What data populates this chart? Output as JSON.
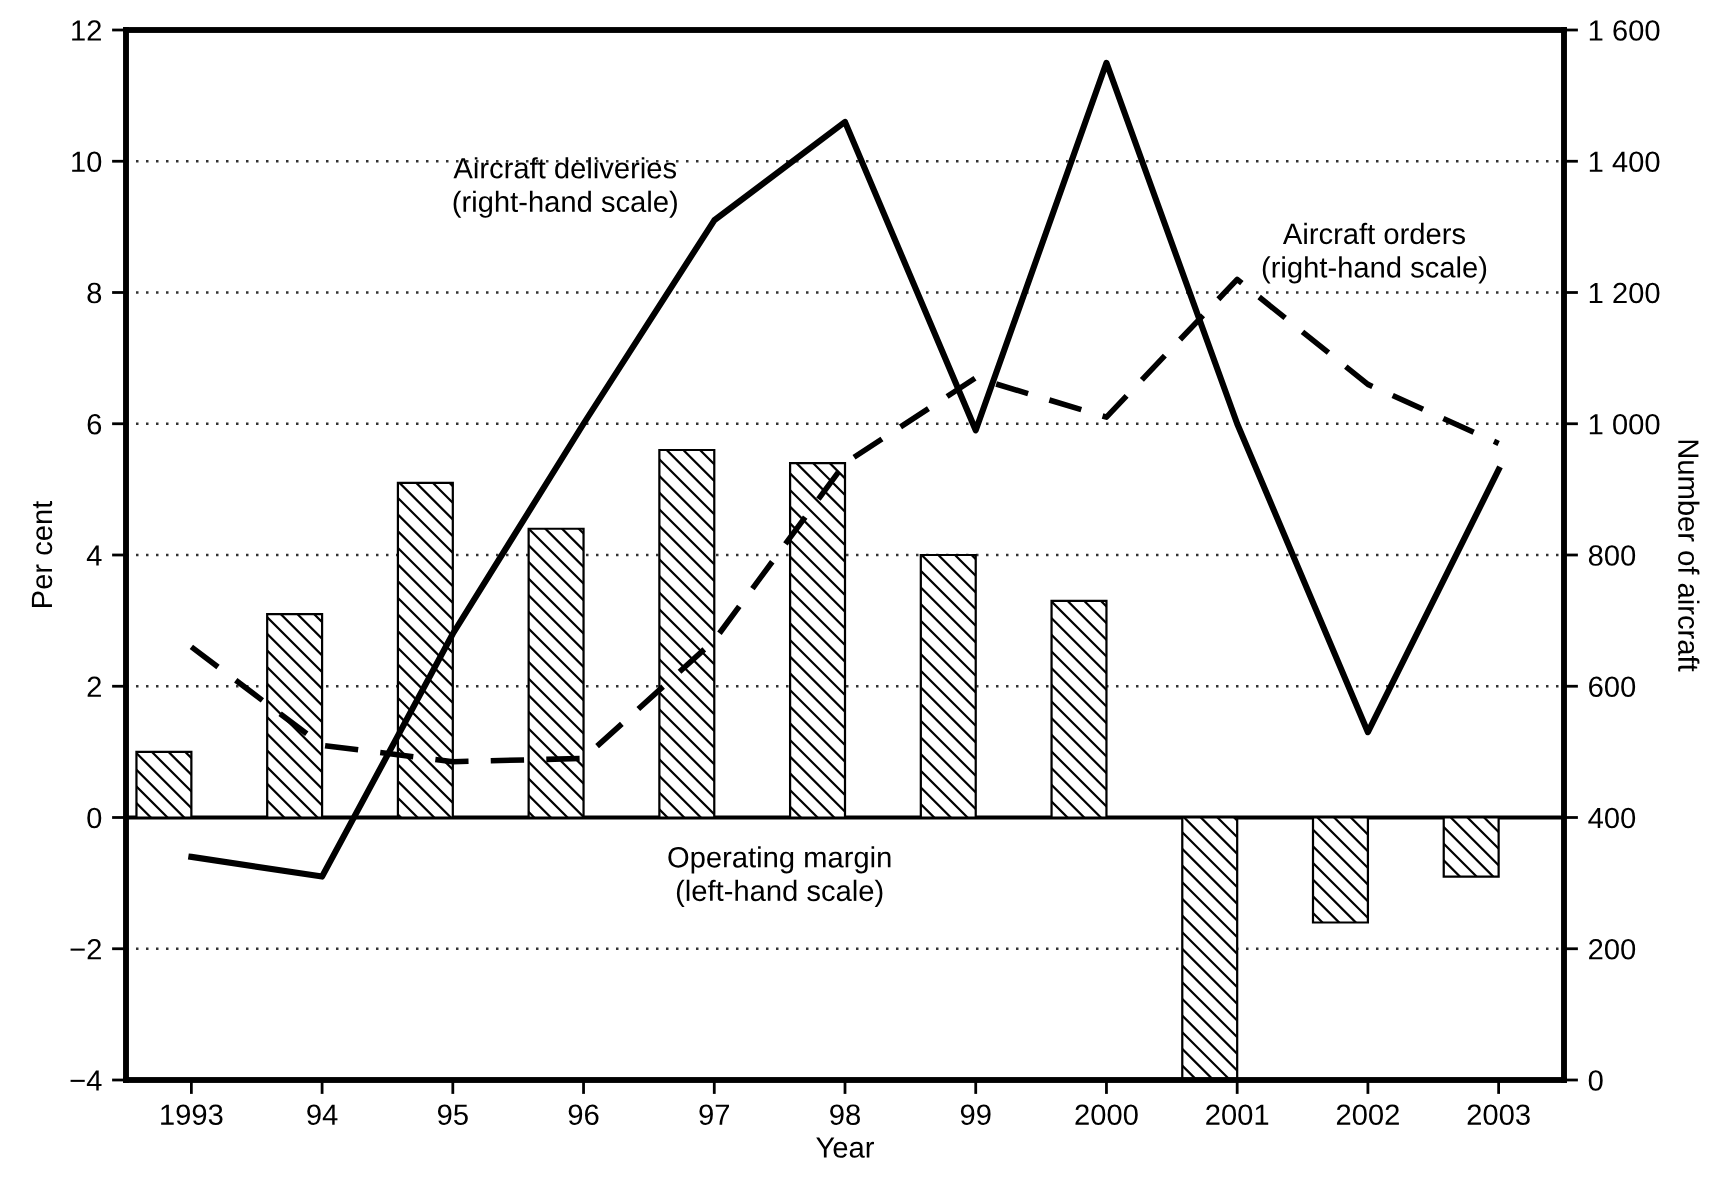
{
  "chart_data": {
    "type": "bar",
    "xlabel": "Year",
    "ylabel": "Per cent",
    "y2label": "Number of aircraft",
    "categories": [
      "1993",
      "94",
      "95",
      "96",
      "97",
      "98",
      "99",
      "2000",
      "2001",
      "2002",
      "2003"
    ],
    "series": [
      {
        "name": "Operating margin\n(left-hand scale)",
        "color": "#000000",
        "values": [
          1.0,
          3.1,
          5.1,
          4.4,
          5.6,
          5.4,
          4.0,
          3.3,
          -4.0,
          -1.6,
          -0.9
        ]
      },
      {
        "name": "Aircraft deliveries\n(right-hand scale)",
        "type": "line",
        "axis": "y2",
        "color": "#000000",
        "line_style": "solid",
        "values": [
          340,
          310,
          680,
          1000,
          1310,
          1460,
          990,
          1550,
          1000,
          530,
          930
        ]
      },
      {
        "name": "Aircraft orders\n(right-hand scale)",
        "type": "line",
        "axis": "y2",
        "color": "#000000",
        "line_style": "dashed",
        "values": [
          660,
          510,
          485,
          490,
          670,
          940,
          1070,
          1010,
          1220,
          1060,
          970
        ]
      }
    ],
    "ylim": [
      -4,
      12
    ],
    "yticks": [
      {
        "value": -4,
        "label": "−4"
      },
      {
        "value": -2,
        "label": "−2"
      },
      0,
      2,
      4,
      6,
      8,
      10,
      12
    ],
    "y2lim": [
      0,
      1600
    ],
    "y2ticks": [
      0,
      200,
      400,
      600,
      800,
      {
        "value": 1000,
        "label": "1 000"
      },
      {
        "value": 1200,
        "label": "1 200"
      },
      {
        "value": 1400,
        "label": "1 400"
      },
      {
        "value": 1600,
        "label": "1 600"
      }
    ],
    "ref_lines": [
      {
        "axis": "y",
        "value": 0,
        "color": "#000000",
        "line_style": "solid"
      }
    ],
    "grid": "y",
    "legend": false,
    "marker": "none"
  }
}
